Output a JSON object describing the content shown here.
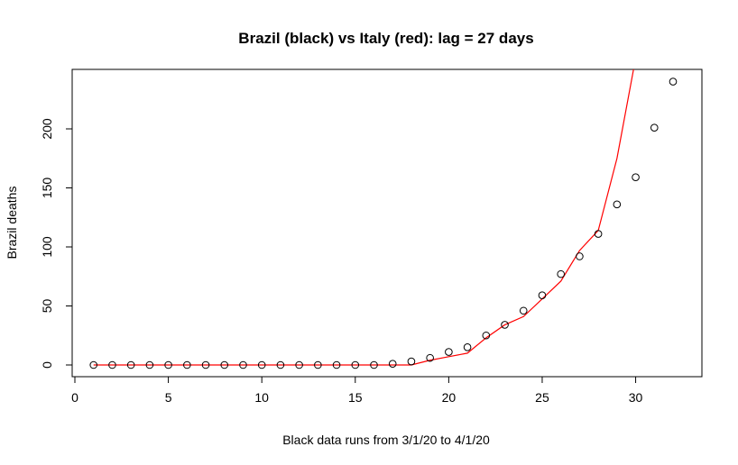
{
  "chart_data": {
    "type": "scatter",
    "title": "Brazil (black) vs Italy (red): lag = 27 days",
    "xlabel": "Black data runs from  3/1/20  to  4/1/20",
    "ylabel": "Brazil deaths",
    "xlim": [
      0,
      33
    ],
    "ylim": [
      -10,
      250
    ],
    "x_ticks": [
      0,
      5,
      10,
      15,
      20,
      25,
      30
    ],
    "y_ticks": [
      0,
      50,
      100,
      150,
      200
    ],
    "series": [
      {
        "name": "Brazil",
        "style": "points",
        "color": "#000000",
        "x": [
          1,
          2,
          3,
          4,
          5,
          6,
          7,
          8,
          9,
          10,
          11,
          12,
          13,
          14,
          15,
          16,
          17,
          18,
          19,
          20,
          21,
          22,
          23,
          24,
          25,
          26,
          27,
          28,
          29,
          30,
          31,
          32
        ],
        "values": [
          0,
          0,
          0,
          0,
          0,
          0,
          0,
          0,
          0,
          0,
          0,
          0,
          0,
          0,
          0,
          0,
          1,
          3,
          6,
          11,
          15,
          25,
          34,
          46,
          59,
          77,
          92,
          111,
          136,
          159,
          201,
          240
        ]
      },
      {
        "name": "Italy",
        "style": "line",
        "color": "#ff0000",
        "x": [
          1,
          2,
          3,
          4,
          5,
          6,
          7,
          8,
          9,
          10,
          11,
          12,
          13,
          14,
          15,
          16,
          17,
          18,
          19,
          20,
          21,
          22,
          23,
          24,
          25,
          26,
          27,
          28,
          29,
          30
        ],
        "values": [
          0,
          0,
          0,
          0,
          0,
          0,
          0,
          0,
          0,
          0,
          0,
          0,
          0,
          0,
          0,
          0,
          0,
          0,
          4,
          7,
          10,
          23,
          34,
          41,
          56,
          71,
          97,
          114,
          175,
          260
        ]
      }
    ],
    "grid": false,
    "legend": "none"
  }
}
